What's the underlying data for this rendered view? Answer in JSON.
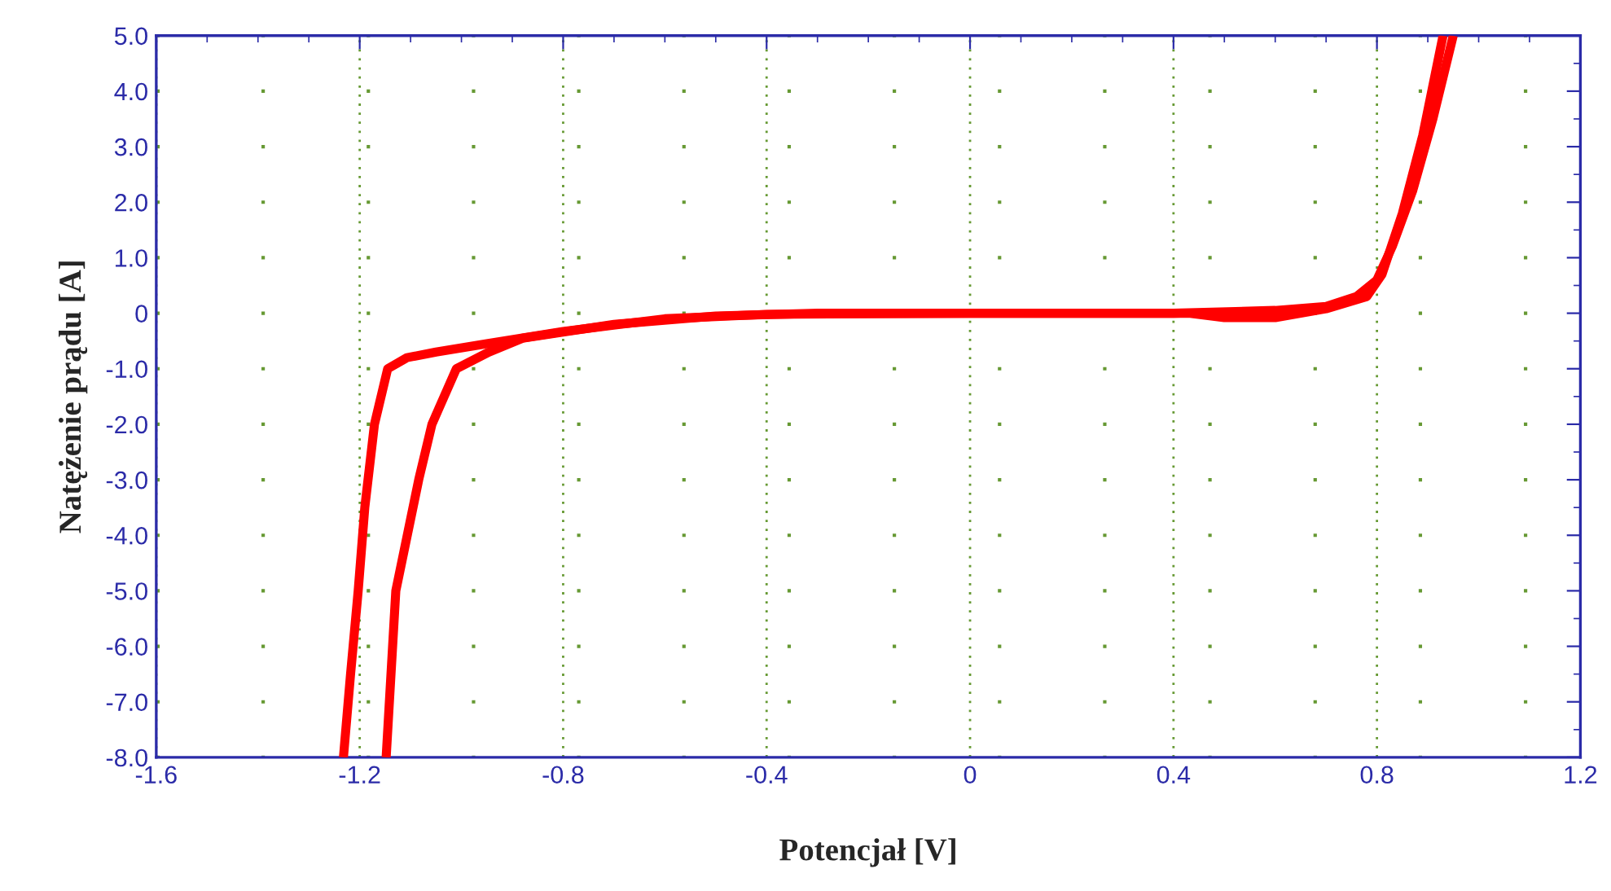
{
  "chart_data": {
    "type": "line",
    "xlabel": "Potencjał [V]",
    "ylabel": "Natężenie prądu [A]",
    "series": [
      {
        "color": "#ff0000",
        "x": [
          -1.148,
          -1.129,
          -1.084,
          -1.058,
          -1.01,
          -0.946,
          -0.88,
          -0.7,
          -0.5,
          -0.3,
          0.4,
          0.6,
          0.7,
          0.76,
          0.8,
          0.83,
          0.87,
          0.91,
          0.95
        ],
        "values": [
          -8.0,
          -5.0,
          -3.0,
          -2.0,
          -1.0,
          -0.7,
          -0.45,
          -0.2,
          -0.05,
          0.0,
          0.0,
          0.05,
          0.12,
          0.3,
          0.6,
          1.2,
          2.2,
          3.5,
          5.0
        ]
      },
      {
        "color": "#ff0000",
        "x": [
          0.93,
          0.89,
          0.85,
          0.81,
          0.78,
          0.7,
          0.6,
          0.5,
          0.43,
          0.0,
          -0.4,
          -0.6,
          -0.8,
          -0.95,
          -1.05,
          -1.107,
          -1.145,
          -1.171,
          -1.19,
          -1.203,
          -1.218,
          -1.232
        ],
        "values": [
          5.0,
          3.2,
          1.8,
          0.7,
          0.3,
          0.08,
          -0.08,
          -0.08,
          0.0,
          0.0,
          -0.02,
          -0.1,
          -0.33,
          -0.55,
          -0.7,
          -0.8,
          -1.0,
          -2.0,
          -3.5,
          -5.0,
          -6.5,
          -8.0
        ]
      }
    ],
    "xlim": [
      -1.6,
      1.2
    ],
    "xticks": [
      -1.6,
      -1.2,
      -0.8,
      -0.4,
      0,
      0.4,
      0.8,
      1.2
    ],
    "ylim": [
      -8,
      5
    ],
    "yticks": [
      {
        "value": 5,
        "label": "5.0"
      },
      {
        "value": 4,
        "label": "4.0"
      },
      {
        "value": 3,
        "label": "3.0"
      },
      {
        "value": 2,
        "label": "2.0"
      },
      {
        "value": 1,
        "label": "1.0"
      },
      {
        "value": 0,
        "label": "0"
      },
      {
        "value": -1,
        "label": "-1.0"
      },
      {
        "value": -2,
        "label": "-2.0"
      },
      {
        "value": -3,
        "label": "-3.0"
      },
      {
        "value": -4,
        "label": "-4.0"
      },
      {
        "value": -5,
        "label": "-5.0"
      },
      {
        "value": -6,
        "label": "-6.0"
      },
      {
        "value": -7,
        "label": "-7.0"
      },
      {
        "value": -8,
        "label": "-8.0"
      }
    ],
    "grid": true,
    "legend": false,
    "marker": "none",
    "line_style": "solid"
  }
}
